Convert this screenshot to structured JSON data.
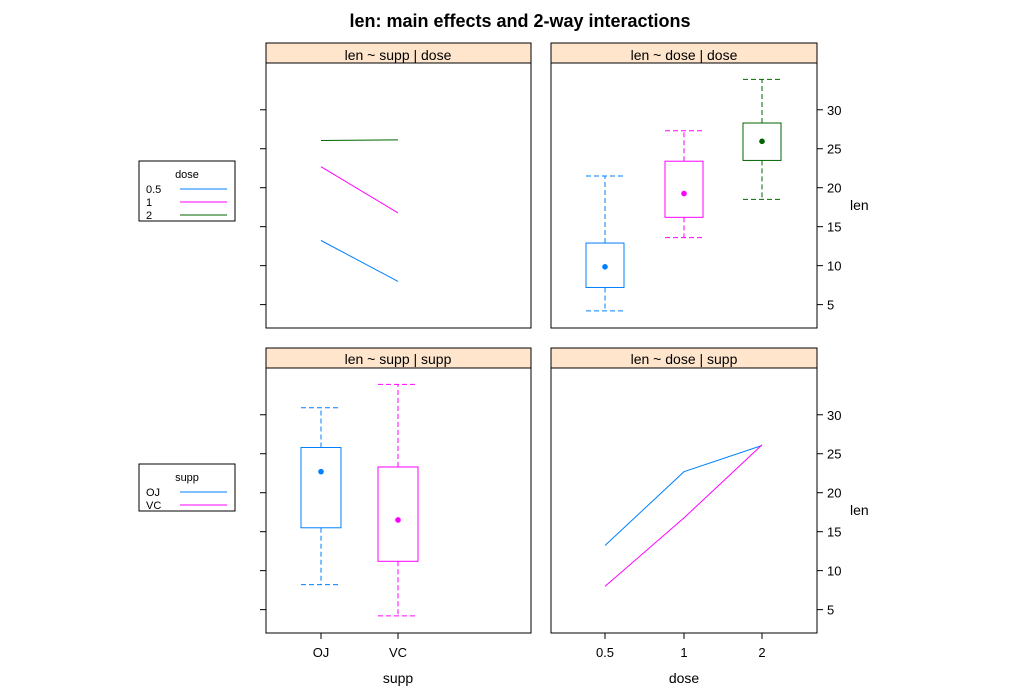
{
  "title": "len: main effects and 2-way interactions",
  "colors": {
    "strip_bg": "#ffe5cc",
    "c1": "#0080ff",
    "c2": "#ff00ff",
    "c3": "#006400"
  },
  "yaxis": {
    "label": "len",
    "ylim": [
      2.0,
      36.0
    ],
    "ticks": [
      5,
      10,
      15,
      20,
      25,
      30
    ]
  },
  "xaxis_left": {
    "label": "supp",
    "tick_labels": [
      "OJ",
      "VC"
    ]
  },
  "xaxis_right": {
    "label": "dose",
    "tick_labels": [
      "0.5",
      "1",
      "2"
    ]
  },
  "legends": [
    {
      "title": "dose",
      "entries": [
        "0.5",
        "1",
        "2"
      ]
    },
    {
      "title": "supp",
      "entries": [
        "OJ",
        "VC"
      ]
    }
  ],
  "chart_data": [
    {
      "type": "line",
      "strip": "len ~ supp | dose",
      "categories": [
        "OJ",
        "VC"
      ],
      "series": [
        {
          "name": "0.5",
          "values": [
            13.23,
            7.98
          ]
        },
        {
          "name": "1",
          "values": [
            22.7,
            16.77
          ]
        },
        {
          "name": "2",
          "values": [
            26.06,
            26.14
          ]
        }
      ]
    },
    {
      "type": "box",
      "strip": "len ~ dose | dose",
      "categories": [
        "0.5",
        "1",
        "2"
      ],
      "boxes": [
        {
          "group": "0.5",
          "whisker_low": 4.2,
          "q1": 7.2,
          "median": 9.85,
          "q3": 12.9,
          "whisker_high": 21.5,
          "mean": 10.0
        },
        {
          "group": "1",
          "whisker_low": 13.6,
          "q1": 16.2,
          "median": 19.25,
          "q3": 23.4,
          "whisker_high": 27.3,
          "mean": 19.4
        },
        {
          "group": "2",
          "whisker_low": 18.5,
          "q1": 23.5,
          "median": 25.95,
          "q3": 28.3,
          "whisker_high": 33.9,
          "mean": 26.1
        }
      ]
    },
    {
      "type": "box",
      "strip": "len ~ supp | supp",
      "categories": [
        "OJ",
        "VC"
      ],
      "boxes": [
        {
          "group": "OJ",
          "whisker_low": 8.2,
          "q1": 15.5,
          "median": 22.7,
          "q3": 25.8,
          "whisker_high": 30.9,
          "mean": 22.8
        },
        {
          "group": "VC",
          "whisker_low": 4.2,
          "q1": 11.2,
          "median": 16.5,
          "q3": 23.3,
          "whisker_high": 33.9,
          "mean": 16.6
        }
      ]
    },
    {
      "type": "line",
      "strip": "len ~ dose | supp",
      "categories": [
        "0.5",
        "1",
        "2"
      ],
      "series": [
        {
          "name": "OJ",
          "values": [
            13.23,
            22.7,
            26.06
          ]
        },
        {
          "name": "VC",
          "values": [
            7.98,
            16.77,
            26.14
          ]
        }
      ]
    }
  ]
}
